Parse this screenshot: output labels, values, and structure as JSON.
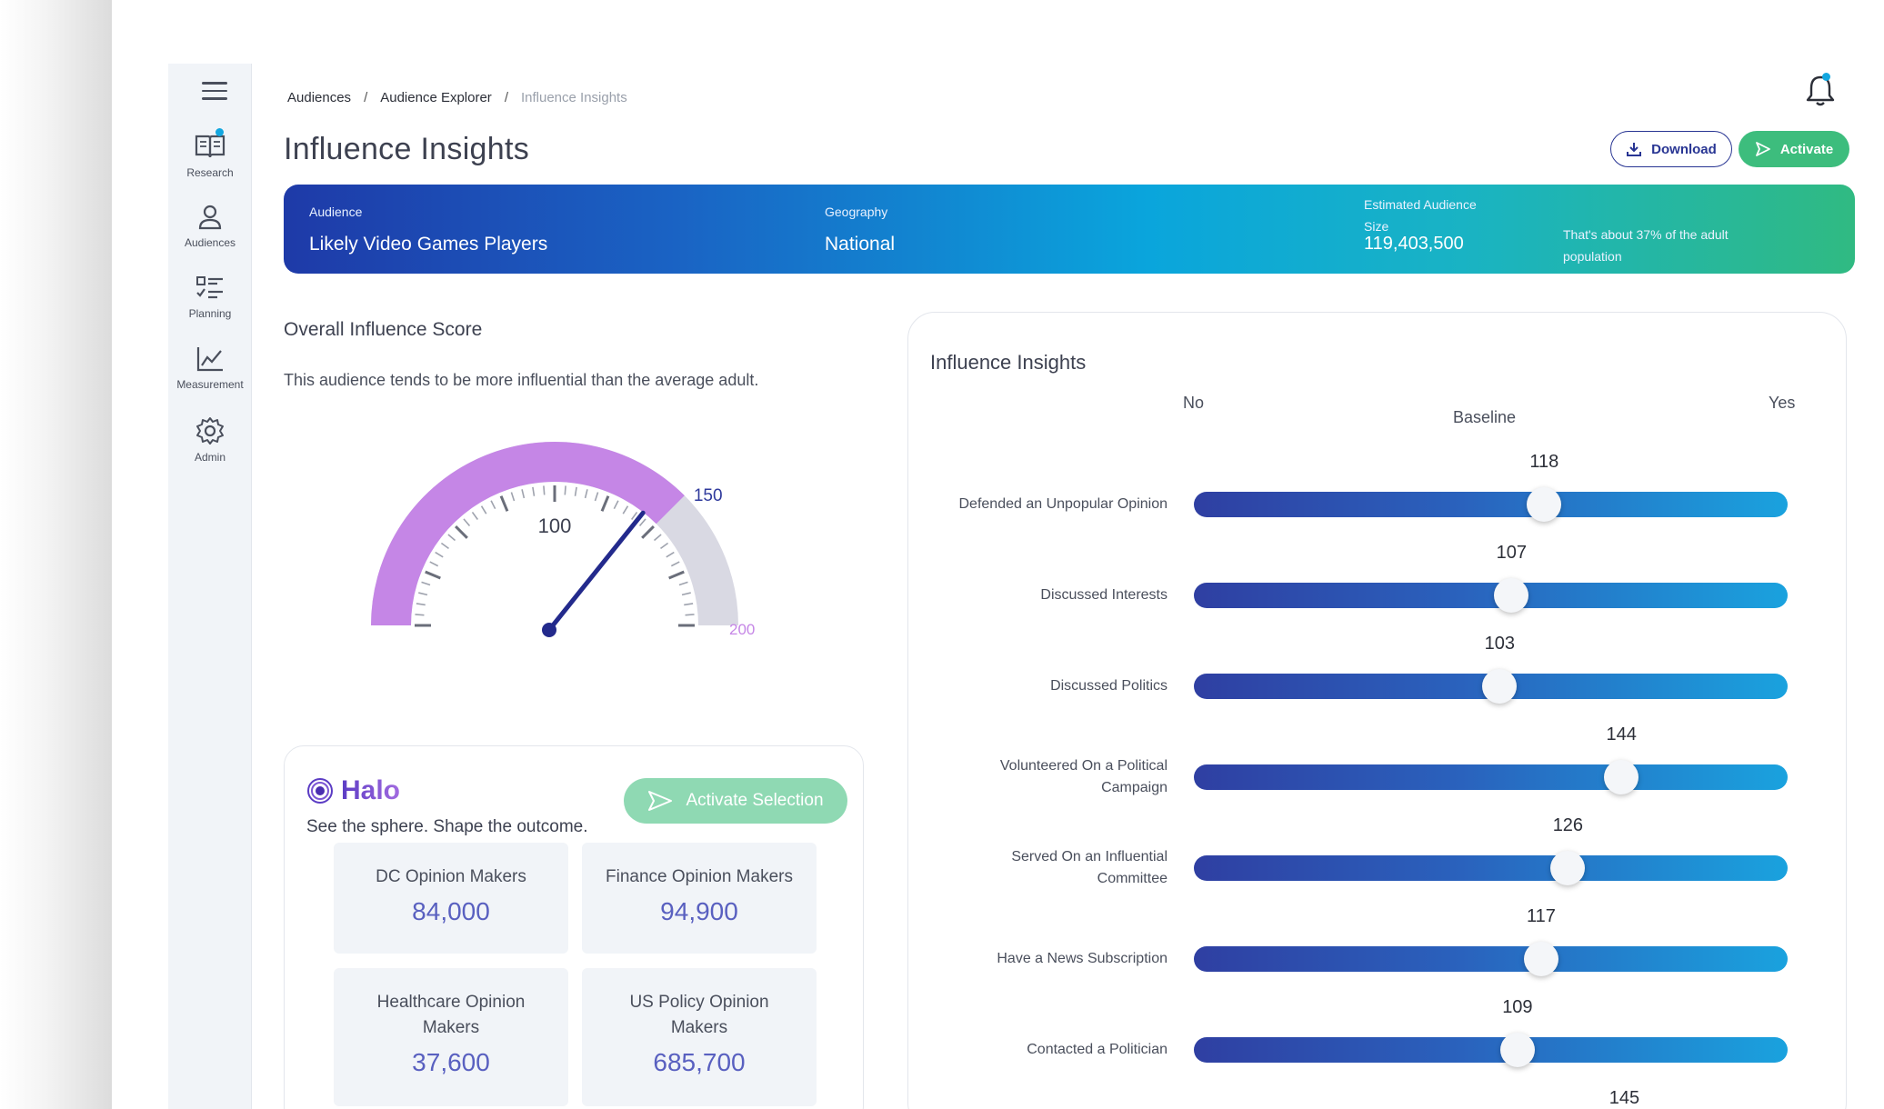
{
  "sidebar": {
    "items": [
      {
        "label": "Research",
        "icon": "book-icon"
      },
      {
        "label": "Audiences",
        "icon": "person-icon"
      },
      {
        "label": "Planning",
        "icon": "checklist-icon"
      },
      {
        "label": "Measurement",
        "icon": "line-chart-icon"
      },
      {
        "label": "Admin",
        "icon": "gear-icon"
      }
    ]
  },
  "breadcrumb": {
    "items": [
      "Audiences",
      "Audience Explorer",
      "Influence Insights"
    ],
    "separator": "/"
  },
  "header": {
    "title": "Influence Insights",
    "download_label": "Download",
    "activate_label": "Activate"
  },
  "banner": {
    "audience_label": "Audience",
    "audience_value": "Likely Video Games Players",
    "geography_label": "Geography",
    "geography_value": "National",
    "size_label": "Estimated Audience Size",
    "size_value": "119,403,500",
    "size_note": "That's about 37% of the adult population"
  },
  "influence_score": {
    "title": "Overall Influence Score",
    "description": "This audience tends to be more influential than the average adult.",
    "gauge": {
      "min": 0,
      "max": 200,
      "baseline_label": "100",
      "threshold_label": "150",
      "max_label": "200",
      "threshold": 150,
      "needle_value": 143
    }
  },
  "halo": {
    "brand": "Halo",
    "tagline": "See the sphere. Shape the outcome.",
    "activate_selection_label": "Activate Selection",
    "tiles": [
      {
        "label": "DC Opinion Makers",
        "value": "84,000"
      },
      {
        "label": "Finance Opinion Makers",
        "value": "94,900"
      },
      {
        "label": "Healthcare Opinion Makers",
        "value": "37,600"
      },
      {
        "label": "US Policy Opinion Makers",
        "value": "685,700"
      }
    ]
  },
  "insights": {
    "title": "Influence Insights",
    "axis_no": "No",
    "axis_baseline": "Baseline",
    "axis_yes": "Yes",
    "scale_min": 0,
    "scale_max": 200,
    "rows": [
      {
        "label": "Defended an Unpopular Opinion",
        "value": 118
      },
      {
        "label": "Discussed Interests",
        "value": 107
      },
      {
        "label": "Discussed Politics",
        "value": 103
      },
      {
        "label": "Volunteered On a Political Campaign",
        "value": 144
      },
      {
        "label": "Served On an Influential Committee",
        "value": 126
      },
      {
        "label": "Have a News Subscription",
        "value": 117
      },
      {
        "label": "Contacted a Politician",
        "value": 109
      },
      {
        "label": "",
        "value": 145
      }
    ]
  },
  "colors": {
    "gauge_fill": "#c586e6",
    "gauge_rest": "#d9d9e3",
    "needle": "#232a8c",
    "threshold_label": "#2f3a9c",
    "max_label": "#c586e6",
    "activate_green": "#3dbd7d",
    "tile_value": "#5960c0"
  }
}
